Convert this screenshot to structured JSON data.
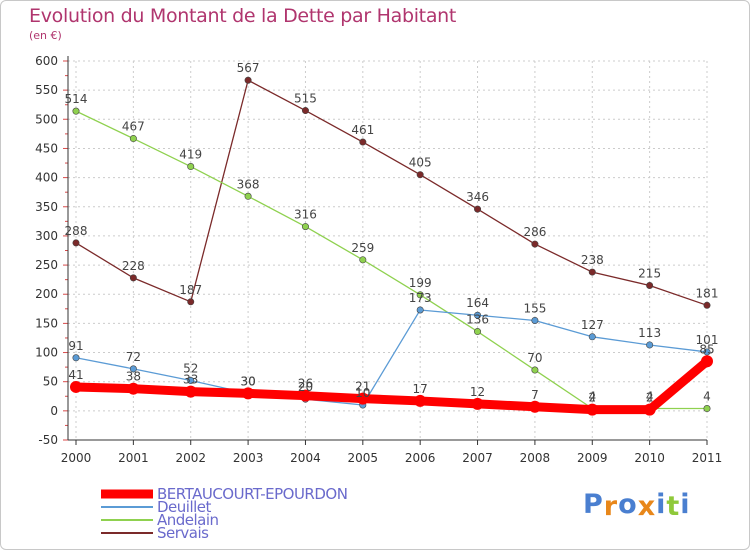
{
  "chart_data": {
    "type": "line",
    "title": "Evolution du Montant de la Dette par Habitant",
    "subtitle": "(en €)",
    "xlabel": "",
    "ylabel": "",
    "ylim": [
      -50,
      600
    ],
    "yticks": [
      "-50",
      "0",
      "50",
      "100",
      "150",
      "200",
      "250",
      "300",
      "350",
      "400",
      "450",
      "500",
      "550",
      "600"
    ],
    "categories": [
      "2000",
      "2001",
      "2002",
      "2003",
      "2004",
      "2005",
      "2006",
      "2007",
      "2008",
      "2009",
      "2010",
      "2011"
    ],
    "grid": true,
    "legend_position": "bottom-left",
    "series": [
      {
        "name": "BERTAUCOURT-EPOURDON",
        "color": "#ff0000",
        "values": [
          41,
          38,
          33,
          30,
          26,
          21,
          17,
          12,
          7,
          2,
          2,
          85
        ]
      },
      {
        "name": "Deuillet",
        "color": "#5b9bd5",
        "values": [
          91,
          72,
          52,
          30,
          20,
          10,
          173,
          164,
          155,
          127,
          113,
          101
        ]
      },
      {
        "name": "Andelain",
        "color": "#8fd14f",
        "values": [
          514,
          467,
          419,
          368,
          316,
          259,
          199,
          136,
          70,
          4,
          4,
          4
        ]
      },
      {
        "name": "Servais",
        "color": "#7b2a2a",
        "values": [
          288,
          228,
          187,
          567,
          515,
          461,
          405,
          346,
          286,
          238,
          215,
          181
        ]
      }
    ],
    "point_labels": {
      "BERTAUCOURT-EPOURDON": [
        "41",
        "38",
        "33",
        "30",
        "26",
        "21",
        "17",
        "12",
        "7",
        "2",
        "2",
        "85"
      ],
      "Deuillet": [
        "91",
        "72",
        "52",
        "30",
        "20",
        "10",
        "173",
        "164",
        "155",
        "127",
        "113",
        "101"
      ],
      "Andelain": [
        "514",
        "467",
        "419",
        "368",
        "316",
        "259",
        "199",
        "136",
        "70",
        "4",
        "4",
        "4"
      ],
      "Servais": [
        "288",
        "228",
        "187",
        "567",
        "515",
        "461",
        "405",
        "346",
        "286",
        "238",
        "215",
        "181"
      ]
    }
  },
  "branding": {
    "logo_letters": [
      "P",
      "r",
      "o",
      "x",
      "i",
      "t",
      "i"
    ],
    "logo_colors": [
      "#4a7fd0",
      "#e8871a",
      "#4a7fd0",
      "#e8871a",
      "#4a7fd0",
      "#8fc93a",
      "#4a7fd0"
    ]
  },
  "colors": {
    "title": "#b0356e",
    "axis": "#333333",
    "grid": "#cccccc",
    "legend_text": "#6a6acc"
  }
}
